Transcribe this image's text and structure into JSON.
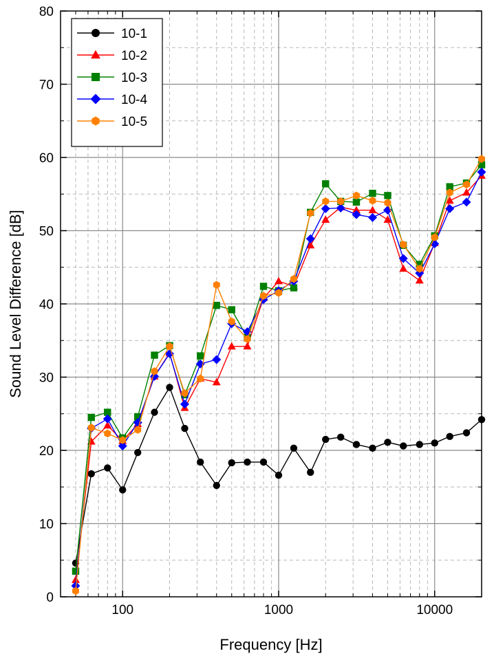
{
  "chart_data": {
    "type": "line",
    "title": "",
    "xlabel": "Frequency [Hz]",
    "ylabel": "Sound Level Difference [dB]",
    "xscale": "log",
    "xlim": [
      40,
      20000
    ],
    "ylim": [
      0,
      80
    ],
    "grid": true,
    "legend_position": "top-left",
    "x_ticks": [
      100,
      1000,
      10000
    ],
    "x_tick_labels": [
      "100",
      "1000",
      "10000"
    ],
    "y_ticks": [
      0,
      10,
      20,
      30,
      40,
      50,
      60,
      70,
      80
    ],
    "y_tick_labels": [
      "0",
      "10",
      "20",
      "30",
      "40",
      "50",
      "60",
      "70",
      "80"
    ],
    "x": [
      50,
      63,
      80,
      100,
      125,
      160,
      200,
      250,
      315,
      400,
      500,
      630,
      800,
      1000,
      1250,
      1600,
      2000,
      2500,
      3150,
      4000,
      5000,
      6300,
      8000,
      10000,
      12500,
      16000,
      20000
    ],
    "series": [
      {
        "name": "10-1",
        "color": "#000000",
        "marker": "circle",
        "values": [
          4.6,
          16.8,
          17.6,
          14.6,
          19.7,
          25.2,
          28.6,
          23.0,
          18.4,
          15.2,
          18.3,
          18.4,
          18.4,
          16.6,
          20.3,
          17.0,
          21.5,
          21.8,
          20.8,
          20.3,
          21.1,
          20.6,
          20.8,
          21.0,
          21.9,
          22.4,
          24.2
        ]
      },
      {
        "name": "10-2",
        "color": "#ff0000",
        "marker": "triangle",
        "values": [
          2.3,
          21.2,
          23.4,
          21.3,
          23.6,
          30.1,
          33.3,
          25.8,
          29.8,
          29.3,
          34.2,
          34.2,
          40.8,
          43.1,
          42.4,
          48.0,
          51.5,
          53.2,
          52.8,
          52.8,
          51.5,
          44.8,
          43.2,
          48.3,
          54.1,
          55.2,
          57.5
        ]
      },
      {
        "name": "10-3",
        "color": "#008000",
        "marker": "square",
        "values": [
          3.5,
          24.5,
          25.2,
          21.7,
          24.6,
          33.0,
          34.3,
          27.6,
          32.9,
          39.8,
          39.2,
          35.4,
          42.4,
          41.8,
          42.2,
          52.5,
          56.4,
          54.0,
          53.9,
          55.1,
          54.8,
          48.0,
          45.4,
          49.3,
          56.0,
          56.5,
          59.0
        ]
      },
      {
        "name": "10-4",
        "color": "#0000ff",
        "marker": "diamond",
        "values": [
          1.5,
          23.0,
          24.3,
          20.6,
          23.8,
          30.1,
          33.2,
          26.3,
          31.8,
          32.4,
          37.3,
          36.2,
          40.6,
          41.8,
          43.1,
          48.9,
          53.0,
          53.1,
          52.2,
          51.8,
          52.8,
          46.2,
          44.2,
          48.2,
          53.0,
          53.9,
          58.0
        ]
      },
      {
        "name": "10-5",
        "color": "#ff8000",
        "marker": "hexagon",
        "values": [
          0.8,
          23.1,
          22.3,
          21.4,
          22.8,
          30.8,
          34.2,
          27.8,
          29.8,
          42.6,
          37.6,
          35.2,
          41.1,
          41.5,
          43.4,
          52.4,
          54.0,
          54.0,
          54.8,
          54.1,
          53.8,
          48.1,
          44.8,
          49.1,
          55.2,
          56.3,
          59.8
        ]
      }
    ]
  }
}
